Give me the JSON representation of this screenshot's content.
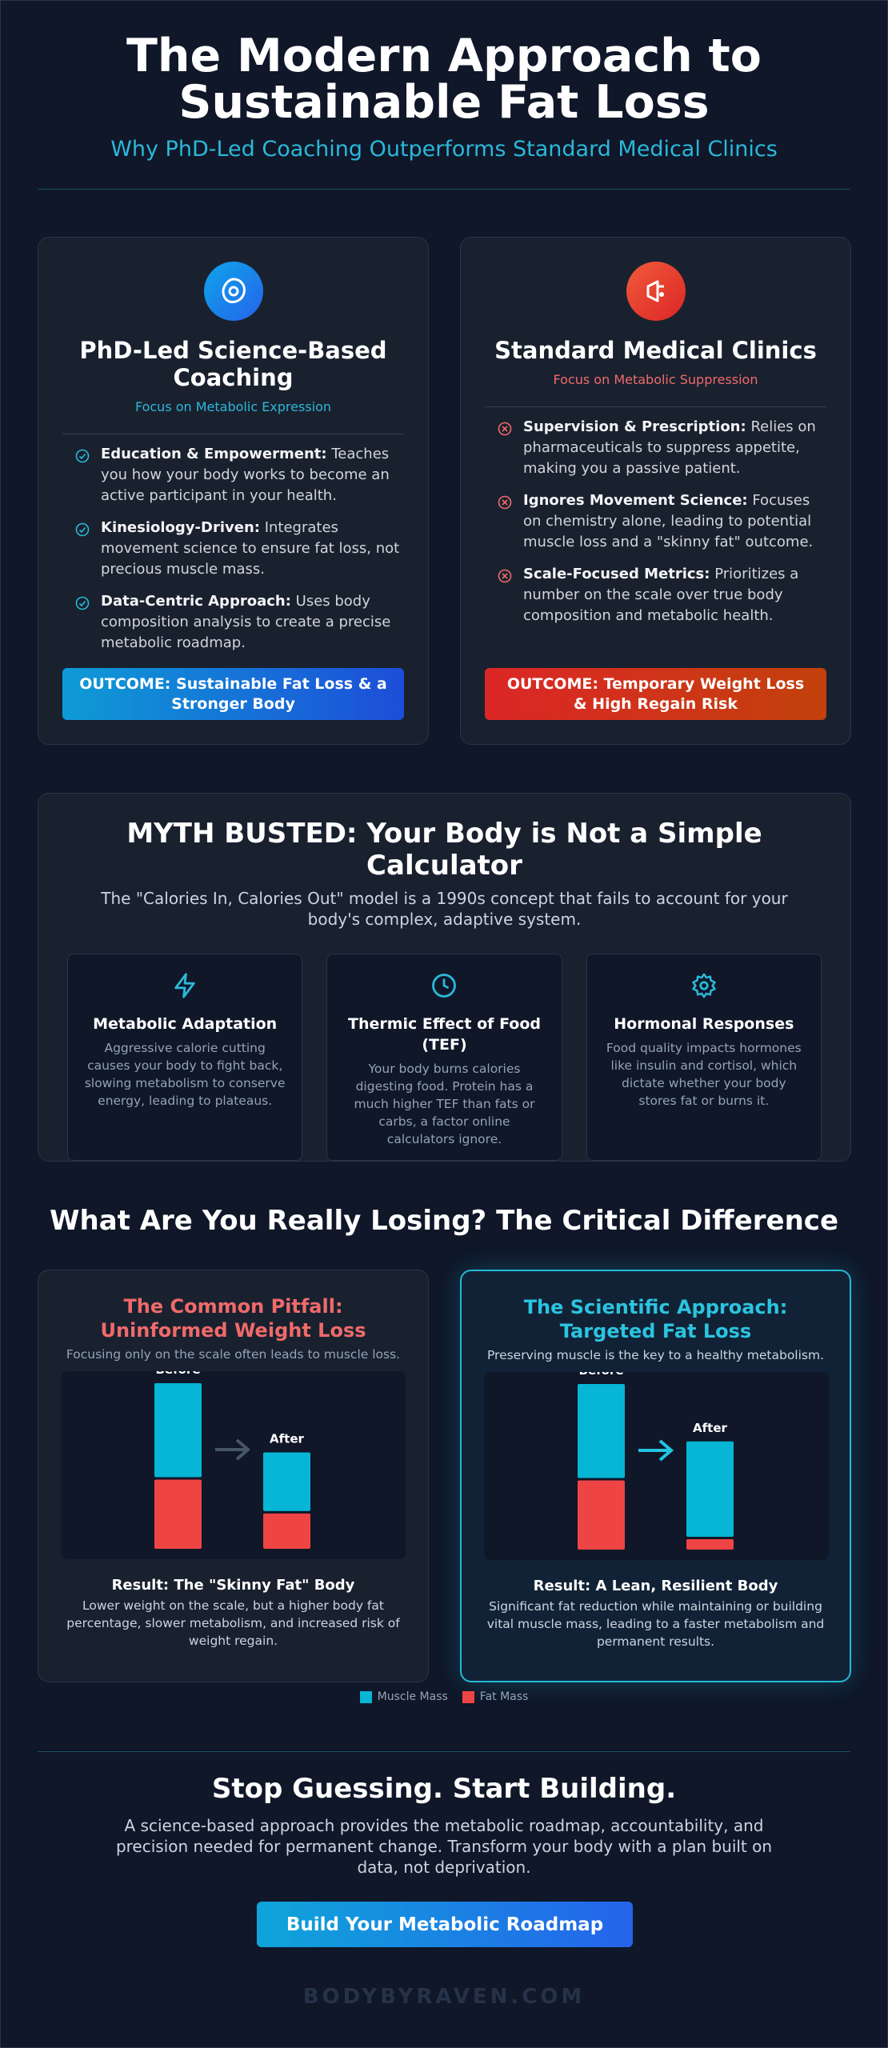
{
  "header": {
    "title": "The Modern Approach to Sustainable Fat Loss",
    "subtitle": "Why PhD-Led Coaching Outperforms Standard Medical Clinics"
  },
  "comparison": [
    {
      "title": "PhD-Led Science-Based Coaching",
      "focus": "Focus on Metabolic Expression",
      "items": [
        {
          "label": "Education & Empowerment:",
          "text": "Teaches you how your body works to become an active participant in your health."
        },
        {
          "label": "Kinesiology-Driven:",
          "text": "Integrates movement science to ensure fat loss, not precious muscle mass."
        },
        {
          "label": "Data-Centric Approach:",
          "text": "Uses body composition analysis to create a precise metabolic roadmap."
        }
      ],
      "outcome": "OUTCOME: Sustainable Fat Loss & a Stronger Body"
    },
    {
      "title": "Standard Medical Clinics",
      "focus": "Focus on Metabolic Suppression",
      "items": [
        {
          "label": "Supervision & Prescription:",
          "text": "Relies on pharmaceuticals to suppress appetite, making you a passive patient."
        },
        {
          "label": "Ignores Movement Science:",
          "text": "Focuses on chemistry alone, leading to potential muscle loss and a \"skinny fat\" outcome."
        },
        {
          "label": "Scale-Focused Metrics:",
          "text": "Prioritizes a number on the scale over true body composition and metabolic health."
        }
      ],
      "outcome": "OUTCOME: Temporary Weight Loss & High Regain Risk"
    }
  ],
  "myth": {
    "title": "MYTH BUSTED: Your Body is Not a Simple Calculator",
    "intro": "The \"Calories In, Calories Out\" model is a 1990s concept that fails to account for your body's complex, adaptive system.",
    "cards": [
      {
        "title": "Metabolic Adaptation",
        "text": "Aggressive calorie cutting causes your body to fight back, slowing metabolism to conserve energy, leading to plateaus."
      },
      {
        "title": "Thermic Effect of Food (TEF)",
        "text": "Your body burns calories digesting food. Protein has a much higher TEF than fats or carbs, a factor online calculators ignore."
      },
      {
        "title": "Hormonal Responses",
        "text": "Food quality impacts hormones like insulin and cortisol, which dictate whether your body stores fat or burns it."
      }
    ]
  },
  "losing": {
    "title": "What Are You Really Losing? The Critical Difference",
    "panels": [
      {
        "title": "The Common Pitfall: Uninformed Weight Loss",
        "subtitle": "Focusing only on the scale often leads to muscle loss.",
        "result_title": "Result: The \"Skinny Fat\" Body",
        "result_text": "Lower weight on the scale, but a higher body fat percentage, slower metabolism, and increased risk of weight regain."
      },
      {
        "title": "The Scientific Approach: Targeted Fat Loss",
        "subtitle": "Preserving muscle is the key to a healthy metabolism.",
        "result_title": "Result: A Lean, Resilient Body",
        "result_text": "Significant fat reduction while maintaining or building vital muscle mass, leading to a faster metabolism and permanent results."
      }
    ]
  },
  "chart_data": [
    {
      "type": "bar",
      "stacked": true,
      "categories": [
        "Before",
        "After"
      ],
      "series": [
        {
          "name": "Muscle Mass",
          "color": "#06b6d4",
          "values": [
            72,
            45
          ]
        },
        {
          "name": "Fat Mass",
          "color": "#ef4444",
          "values": [
            53,
            27
          ]
        }
      ]
    },
    {
      "type": "bar",
      "stacked": true,
      "categories": [
        "Before",
        "After"
      ],
      "series": [
        {
          "color": "#06b6d4",
          "values": [
            72,
            73
          ]
        },
        {
          "color": "#ef4444",
          "values": [
            53,
            8
          ]
        }
      ]
    }
  ],
  "cta": {
    "title": "Stop Guessing. Start Building.",
    "text": "A science-based approach provides the metabolic roadmap, accountability, and precision needed for permanent change. Transform your body with a plan built on data, not deprivation.",
    "button": "Build Your Metabolic Roadmap"
  },
  "footer": "BODYBYRAVEN.COM"
}
